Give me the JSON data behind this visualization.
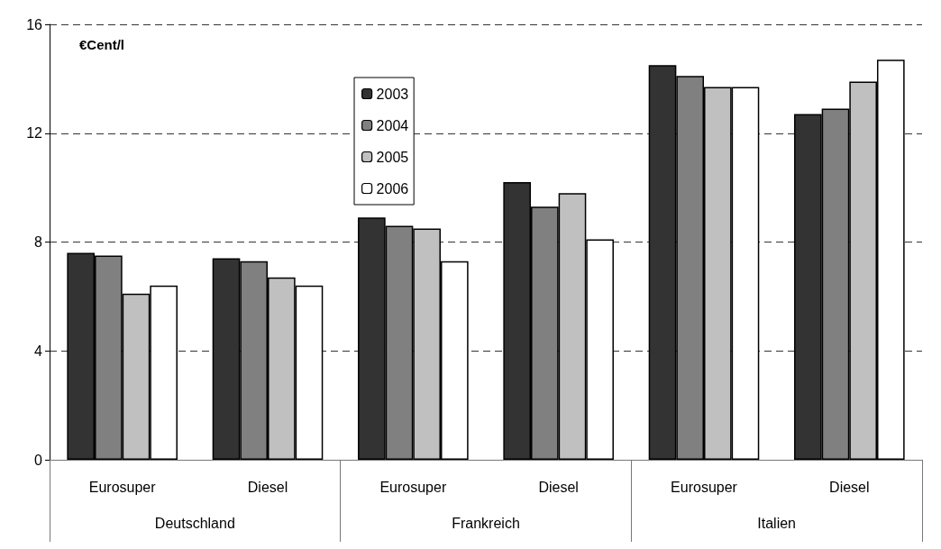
{
  "chart_data": {
    "type": "bar",
    "ylabel": "€Cent/l",
    "categories": [
      "Eurosuper",
      "Diesel",
      "Eurosuper",
      "Diesel",
      "Eurosuper",
      "Diesel"
    ],
    "annotations": [
      "Deutschland",
      "Frankreich",
      "Italien"
    ],
    "series": [
      {
        "name": "2003",
        "color": "#333333",
        "values": [
          7.6,
          7.4,
          8.9,
          10.2,
          14.5,
          12.7
        ]
      },
      {
        "name": "2004",
        "color": "#808080",
        "values": [
          7.5,
          7.3,
          8.6,
          9.3,
          14.1,
          12.9
        ]
      },
      {
        "name": "2005",
        "color": "#c0c0c0",
        "values": [
          6.1,
          6.7,
          8.5,
          9.8,
          13.7,
          13.9
        ]
      },
      {
        "name": "2006",
        "color": "#ffffff",
        "values": [
          6.4,
          6.4,
          7.3,
          8.1,
          13.7,
          14.7
        ]
      }
    ],
    "ylim": [
      0,
      16
    ],
    "yticks": [
      0,
      4,
      8,
      12,
      16
    ],
    "grid": "y",
    "legend": "top"
  }
}
